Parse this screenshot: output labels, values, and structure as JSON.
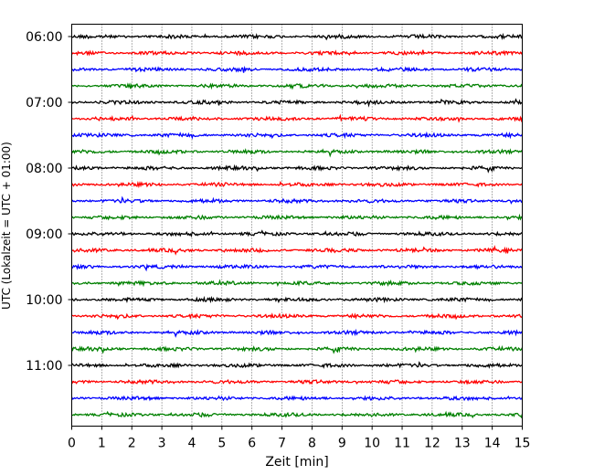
{
  "chart_data": {
    "type": "line",
    "title": "",
    "xlabel": "Zeit  [min]",
    "ylabel": "UTC (Lokalzeit = UTC + 01:00)",
    "xlim": [
      0,
      15
    ],
    "x_ticks": [
      0,
      1,
      2,
      3,
      4,
      5,
      6,
      7,
      8,
      9,
      10,
      11,
      12,
      13,
      14,
      15
    ],
    "x_tick_labels": [
      "0",
      "1",
      "2",
      "3",
      "4",
      "5",
      "6",
      "7",
      "8",
      "9",
      "10",
      "11",
      "12",
      "13",
      "14",
      "15"
    ],
    "vertical_gridlines": true,
    "grid_style": "dotted",
    "trace_minutes_each": 15,
    "y_tick_labels": [
      "06:00",
      "07:00",
      "08:00",
      "09:00",
      "10:00",
      "11:00"
    ],
    "series_colors": [
      "#000000",
      "#ff0000",
      "#0000ff",
      "#008000"
    ],
    "traces": [
      {
        "start": "06:00",
        "color": "#000000"
      },
      {
        "start": "06:15",
        "color": "#ff0000"
      },
      {
        "start": "06:30",
        "color": "#0000ff"
      },
      {
        "start": "06:45",
        "color": "#008000"
      },
      {
        "start": "07:00",
        "color": "#000000"
      },
      {
        "start": "07:15",
        "color": "#ff0000"
      },
      {
        "start": "07:30",
        "color": "#0000ff"
      },
      {
        "start": "07:45",
        "color": "#008000"
      },
      {
        "start": "08:00",
        "color": "#000000"
      },
      {
        "start": "08:15",
        "color": "#ff0000"
      },
      {
        "start": "08:30",
        "color": "#0000ff"
      },
      {
        "start": "08:45",
        "color": "#008000"
      },
      {
        "start": "09:00",
        "color": "#000000"
      },
      {
        "start": "09:15",
        "color": "#ff0000"
      },
      {
        "start": "09:30",
        "color": "#0000ff"
      },
      {
        "start": "09:45",
        "color": "#008000"
      },
      {
        "start": "10:00",
        "color": "#000000"
      },
      {
        "start": "10:15",
        "color": "#ff0000"
      },
      {
        "start": "10:30",
        "color": "#0000ff"
      },
      {
        "start": "10:45",
        "color": "#008000"
      },
      {
        "start": "11:00",
        "color": "#000000"
      },
      {
        "start": "11:15",
        "color": "#ff0000"
      },
      {
        "start": "11:30",
        "color": "#0000ff"
      },
      {
        "start": "11:45",
        "color": "#008000"
      }
    ]
  }
}
